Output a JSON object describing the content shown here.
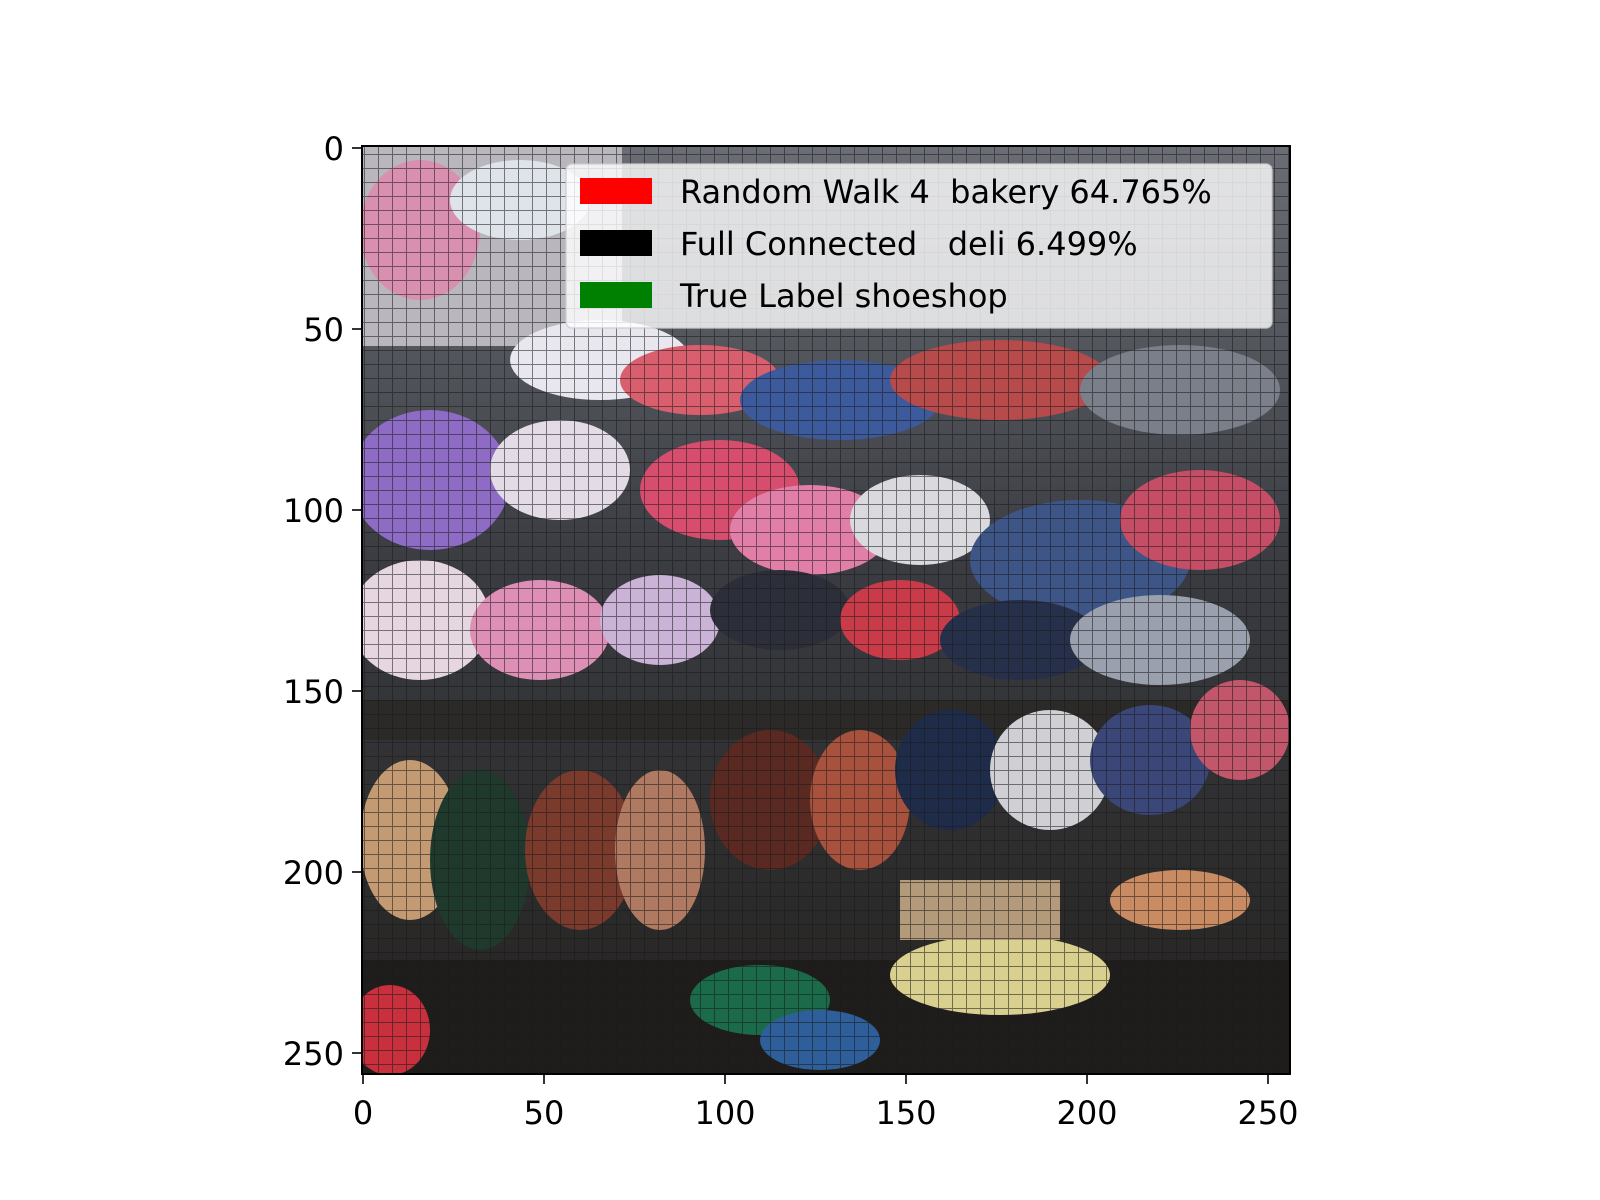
{
  "axes": {
    "x_ticks": [
      "0",
      "50",
      "100",
      "150",
      "200",
      "250"
    ],
    "y_ticks": [
      "0",
      "50",
      "100",
      "150",
      "200",
      "250"
    ]
  },
  "legend": {
    "placement": "upper-right",
    "entries": [
      {
        "label": "Random Walk 4  bakery 64.765%",
        "color": "#ff0000"
      },
      {
        "label": "Full Connected   deli 6.499%",
        "color": "#000000"
      },
      {
        "label": "True Label shoeshop",
        "color": "#008000"
      }
    ]
  },
  "image": {
    "subject": "shoe-shop-display-photo"
  }
}
